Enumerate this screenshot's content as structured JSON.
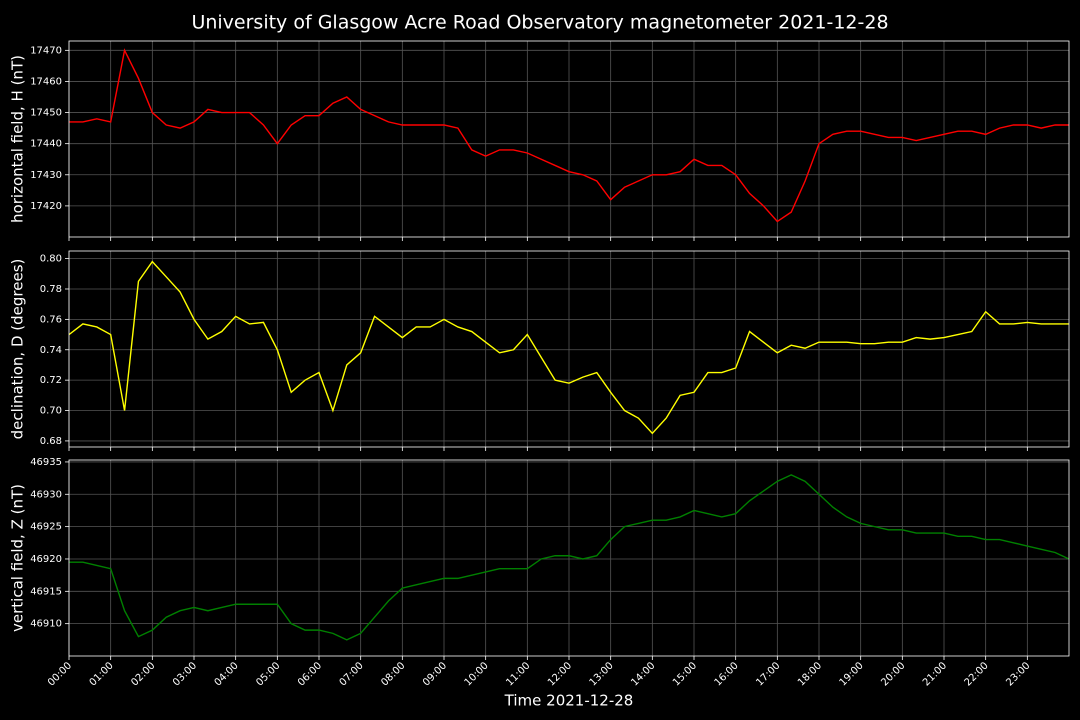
{
  "title": "University of Glasgow Acre Road Observatory magnetometer 2021-12-28",
  "xlabel": "Time 2021-12-28",
  "xlim": [
    0,
    1440
  ],
  "xticks": [
    {
      "value": 0,
      "label": "00:00"
    },
    {
      "value": 60,
      "label": "01:00"
    },
    {
      "value": 120,
      "label": "02:00"
    },
    {
      "value": 180,
      "label": "03:00"
    },
    {
      "value": 240,
      "label": "04:00"
    },
    {
      "value": 300,
      "label": "05:00"
    },
    {
      "value": 360,
      "label": "06:00"
    },
    {
      "value": 420,
      "label": "07:00"
    },
    {
      "value": 480,
      "label": "08:00"
    },
    {
      "value": 540,
      "label": "09:00"
    },
    {
      "value": 600,
      "label": "10:00"
    },
    {
      "value": 660,
      "label": "11:00"
    },
    {
      "value": 720,
      "label": "12:00"
    },
    {
      "value": 780,
      "label": "13:00"
    },
    {
      "value": 840,
      "label": "14:00"
    },
    {
      "value": 900,
      "label": "15:00"
    },
    {
      "value": 960,
      "label": "16:00"
    },
    {
      "value": 1020,
      "label": "17:00"
    },
    {
      "value": 1080,
      "label": "18:00"
    },
    {
      "value": 1140,
      "label": "19:00"
    },
    {
      "value": 1200,
      "label": "20:00"
    },
    {
      "value": 1260,
      "label": "21:00"
    },
    {
      "value": 1320,
      "label": "22:00"
    },
    {
      "value": 1380,
      "label": "23:00"
    }
  ],
  "x": [
    0,
    20,
    40,
    60,
    80,
    100,
    120,
    140,
    160,
    180,
    200,
    220,
    240,
    260,
    280,
    300,
    320,
    340,
    360,
    380,
    400,
    420,
    440,
    460,
    480,
    500,
    520,
    540,
    560,
    580,
    600,
    620,
    640,
    660,
    680,
    700,
    720,
    740,
    760,
    780,
    800,
    820,
    840,
    860,
    880,
    900,
    920,
    940,
    960,
    980,
    1000,
    1020,
    1040,
    1060,
    1080,
    1100,
    1120,
    1140,
    1160,
    1180,
    1200,
    1220,
    1240,
    1260,
    1280,
    1300,
    1320,
    1340,
    1360,
    1380,
    1400,
    1420,
    1440
  ],
  "grid": true,
  "chart_data": [
    {
      "type": "line",
      "ylabel": "horizontal field, H (nT)",
      "color": "#ff0000",
      "ylim": [
        17410,
        17473
      ],
      "yticks": [
        17420,
        17430,
        17440,
        17450,
        17460,
        17470
      ],
      "values": [
        17447,
        17447,
        17448,
        17447,
        17470,
        17461,
        17450,
        17446,
        17445,
        17447,
        17451,
        17450,
        17450,
        17450,
        17446,
        17440,
        17446,
        17449,
        17449,
        17453,
        17455,
        17451,
        17449,
        17447,
        17446,
        17446,
        17446,
        17446,
        17445,
        17438,
        17436,
        17438,
        17438,
        17437,
        17435,
        17433,
        17431,
        17430,
        17428,
        17422,
        17426,
        17428,
        17430,
        17430,
        17431,
        17435,
        17433,
        17433,
        17430,
        17424,
        17420,
        17415,
        17418,
        17428,
        17440,
        17443,
        17444,
        17444,
        17443,
        17442,
        17442,
        17441,
        17442,
        17443,
        17444,
        17444,
        17443,
        17445,
        17446,
        17446,
        17445,
        17446,
        17446
      ]
    },
    {
      "type": "line",
      "ylabel": "declination, D (degrees)",
      "color": "#ffff00",
      "ylim": [
        0.676,
        0.805
      ],
      "yticks": [
        0.68,
        {
          "value": 0.7,
          "label": "0.70"
        },
        0.72,
        0.74,
        0.76,
        0.78,
        {
          "value": 0.8,
          "label": "0.80"
        }
      ],
      "values": [
        0.75,
        0.757,
        0.755,
        0.75,
        0.7,
        0.785,
        0.798,
        0.788,
        0.778,
        0.76,
        0.747,
        0.752,
        0.762,
        0.757,
        0.758,
        0.74,
        0.712,
        0.72,
        0.725,
        0.7,
        0.73,
        0.738,
        0.762,
        0.755,
        0.748,
        0.755,
        0.755,
        0.76,
        0.755,
        0.752,
        0.745,
        0.738,
        0.74,
        0.75,
        0.735,
        0.72,
        0.718,
        0.722,
        0.725,
        0.712,
        0.7,
        0.695,
        0.685,
        0.695,
        0.71,
        0.712,
        0.725,
        0.725,
        0.728,
        0.752,
        0.745,
        0.738,
        0.743,
        0.741,
        0.745,
        0.745,
        0.745,
        0.744,
        0.744,
        0.745,
        0.745,
        0.748,
        0.747,
        0.748,
        0.75,
        0.752,
        0.765,
        0.757,
        0.757,
        0.758,
        0.757,
        0.757,
        0.757
      ]
    },
    {
      "type": "line",
      "ylabel": "vertical field, Z (nT)",
      "color": "#008000",
      "ylim": [
        46905,
        46935.3
      ],
      "yticks": [
        46910,
        46915,
        46920,
        46925,
        46930,
        46935
      ],
      "values": [
        46919.5,
        46919.5,
        46919,
        46918.5,
        46912,
        46908,
        46909,
        46911,
        46912,
        46912.5,
        46912,
        46912.5,
        46913,
        46913,
        46913,
        46913,
        46910,
        46909,
        46909,
        46908.5,
        46907.5,
        46908.5,
        46911,
        46913.5,
        46915.5,
        46916,
        46916.5,
        46917,
        46917,
        46917.5,
        46918,
        46918.5,
        46918.5,
        46918.5,
        46920,
        46920.5,
        46920.5,
        46920,
        46920.5,
        46923,
        46925,
        46925.5,
        46926,
        46926,
        46926.5,
        46927.5,
        46927,
        46926.5,
        46927,
        46929,
        46930.5,
        46932,
        46933,
        46932,
        46930,
        46928,
        46926.5,
        46925.5,
        46925,
        46924.5,
        46924.5,
        46924,
        46924,
        46924,
        46923.5,
        46923.5,
        46923,
        46923,
        46922.5,
        46922,
        46921.5,
        46921,
        46920
      ]
    }
  ]
}
